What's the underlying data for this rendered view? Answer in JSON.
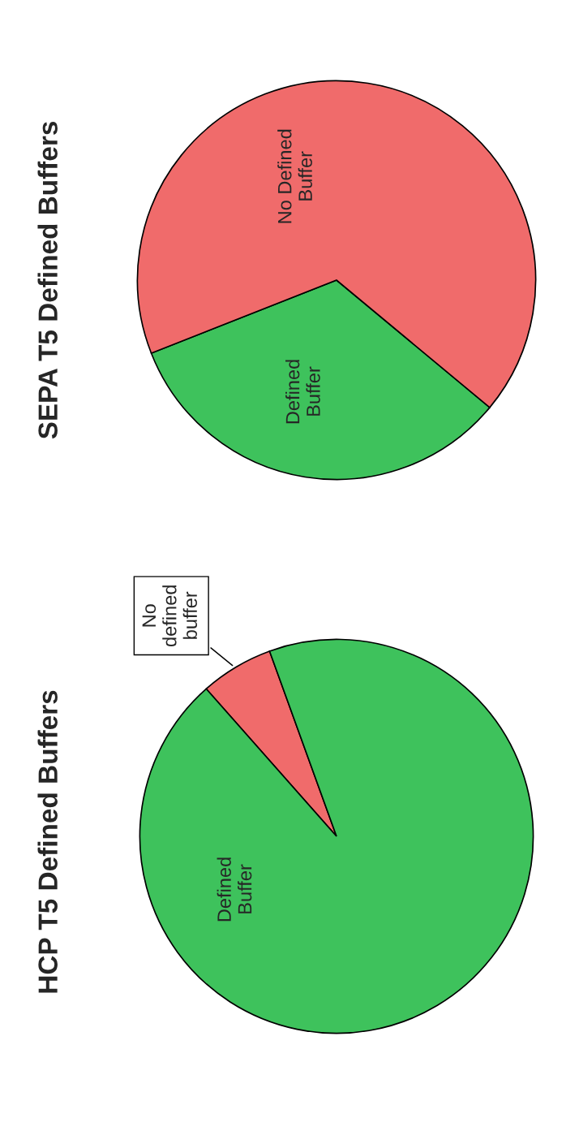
{
  "chart_data": [
    {
      "type": "pie",
      "title": "HCP T5 Defined Buffers",
      "categories": [
        "No\ndefined\nbuffer",
        "Defined\nBuffer"
      ],
      "values": [
        6,
        94
      ],
      "colors": [
        "#f06b6b",
        "#3ec25c"
      ]
    },
    {
      "type": "pie",
      "title": "SEPA T5 Defined Buffers",
      "categories": [
        "Defined\nBuffer",
        "No Defined\nBuffer"
      ],
      "values": [
        33,
        67
      ],
      "colors": [
        "#3ec25c",
        "#f06b6b"
      ]
    }
  ]
}
